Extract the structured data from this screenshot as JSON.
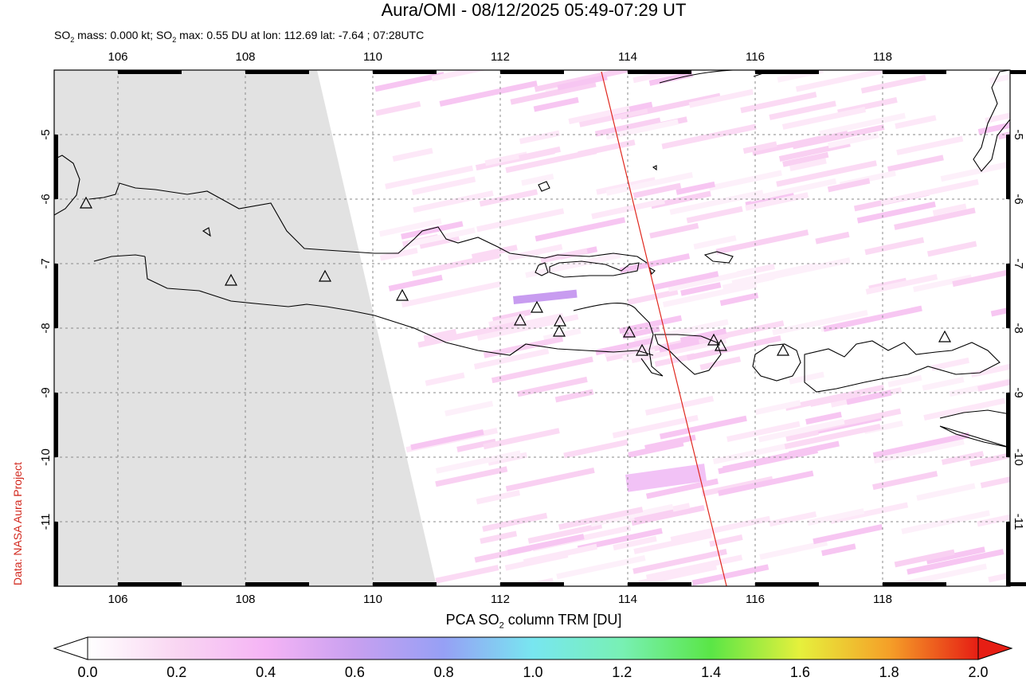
{
  "header": {
    "title": "Aura/OMI - 08/12/2025 05:49-07:29 UT",
    "subtitle_prefix": "SO",
    "subtitle_sub": "2",
    "subtitle_mid": " mass: 0.000 kt; SO",
    "subtitle_sub2": "2",
    "subtitle_rest": " max: 0.55 DU at lon: 112.69 lat: -7.64 ; 07:28UTC"
  },
  "credit": "Data: NASA Aura Project",
  "map": {
    "lon_range": [
      105,
      120
    ],
    "lat_range": [
      -12,
      -4
    ],
    "lon_ticks": [
      "106",
      "108",
      "110",
      "112",
      "114",
      "116",
      "118"
    ],
    "lat_ticks": [
      "-5",
      "-6",
      "-7",
      "-8",
      "-9",
      "-10",
      "-11"
    ],
    "grid": "dashed",
    "no_data_color": "#e2e2e2",
    "coastline_color": "#000000",
    "orbit_track_color": "#e0281e",
    "volcano_marker": "triangle"
  },
  "colorbar": {
    "title_prefix": "PCA SO",
    "title_sub": "2",
    "title_rest": " column TRM [DU]",
    "ticks": [
      "0.0",
      "0.2",
      "0.4",
      "0.6",
      "0.8",
      "1.0",
      "1.2",
      "1.4",
      "1.6",
      "1.8",
      "2.0"
    ],
    "colors": [
      "#ffffff",
      "#f9d6f2",
      "#f5b4f5",
      "#c8a0f0",
      "#96a0f5",
      "#78e6f0",
      "#78f0b4",
      "#5ae646",
      "#e6f03c",
      "#f5a028",
      "#e61e14"
    ]
  }
}
